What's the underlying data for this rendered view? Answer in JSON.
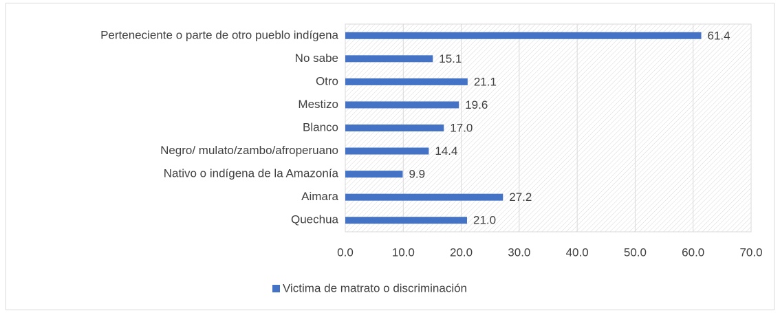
{
  "chart_data": {
    "type": "bar",
    "orientation": "horizontal",
    "categories": [
      "Perteneciente o parte de otro pueblo indígena",
      "No sabe",
      "Otro",
      "Mestizo",
      "Blanco",
      "Negro/ mulato/zambo/afroperuano",
      "Nativo o indígena de la Amazonía",
      "Aimara",
      "Quechua"
    ],
    "series": [
      {
        "name": "Victima de matrato o discriminación",
        "color": "#4472c4",
        "values": [
          61.4,
          15.1,
          21.1,
          19.6,
          17.0,
          14.4,
          9.9,
          27.2,
          21.0
        ],
        "value_labels": [
          "61.4",
          "15.1",
          "21.1",
          "19.6",
          "17.0",
          "14.4",
          "9.9",
          "27.2",
          "21.0"
        ]
      }
    ],
    "xlim": [
      0,
      70
    ],
    "xticks": [
      {
        "value": 0,
        "label": "0.0"
      },
      {
        "value": 10,
        "label": "10.0"
      },
      {
        "value": 20,
        "label": "20.0"
      },
      {
        "value": 30,
        "label": "30.0"
      },
      {
        "value": 40,
        "label": "40.0"
      },
      {
        "value": 50,
        "label": "50.0"
      },
      {
        "value": 60,
        "label": "60.0"
      },
      {
        "value": 70,
        "label": "70.0"
      }
    ],
    "grid": true,
    "legend": "bottom"
  }
}
